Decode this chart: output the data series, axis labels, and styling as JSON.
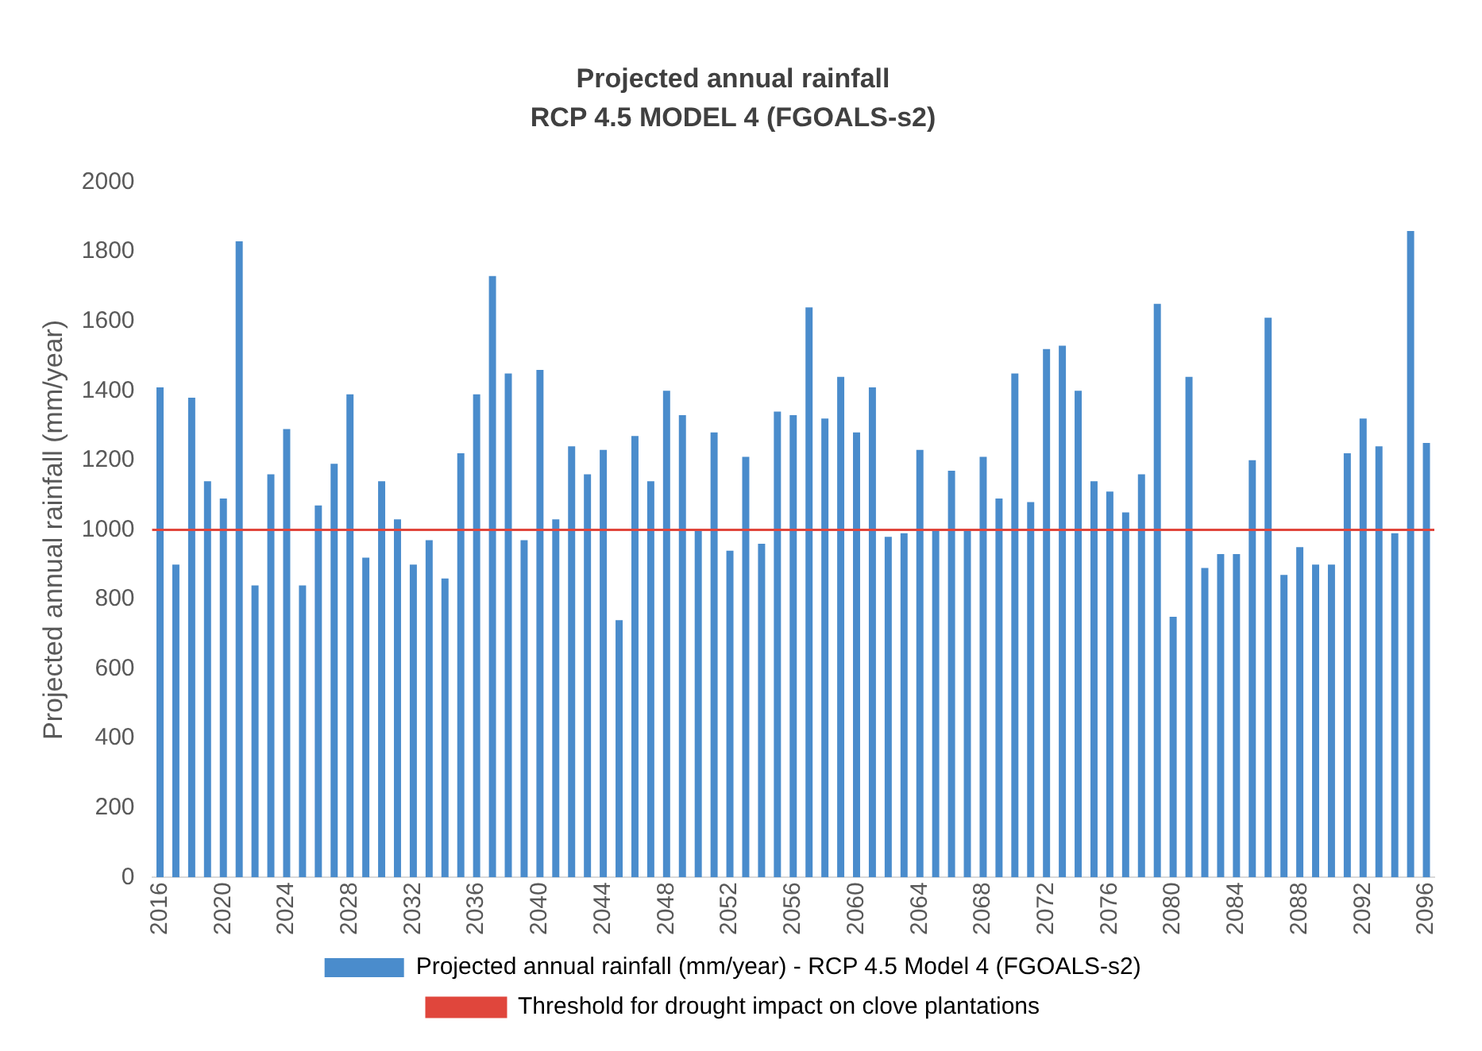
{
  "chart_data": {
    "type": "bar",
    "title": "Projected annual rainfall",
    "subtitle": "RCP 4.5 MODEL 4 (FGOALS-s2)",
    "ylabel": "Projected annual rainfall (mm/year)",
    "categories": [
      "2016",
      null,
      null,
      null,
      "2020",
      null,
      null,
      null,
      "2024",
      null,
      null,
      null,
      "2028",
      null,
      null,
      null,
      "2032",
      null,
      null,
      null,
      "2036",
      null,
      null,
      null,
      "2040",
      null,
      null,
      null,
      "2044",
      null,
      null,
      null,
      "2048",
      null,
      null,
      null,
      "2052",
      null,
      null,
      null,
      "2056",
      null,
      null,
      null,
      "2060",
      null,
      null,
      null,
      "2064",
      null,
      null,
      null,
      "2068",
      null,
      null,
      null,
      "2072",
      null,
      null,
      null,
      "2076",
      null,
      null,
      null,
      "2080",
      null,
      null,
      null,
      "2084",
      null,
      null,
      null,
      "2088",
      null,
      null,
      null,
      "2092",
      null,
      null,
      null,
      "2096"
    ],
    "series": [
      {
        "name": "Projected annual rainfall (mm/year) - RCP 4.5 Model 4 (FGOALS-s2)",
        "color": "#4a8ccc",
        "values": [
          1410,
          900,
          1380,
          1140,
          1090,
          1830,
          840,
          1160,
          1290,
          840,
          1070,
          1190,
          1390,
          920,
          1140,
          1030,
          900,
          970,
          860,
          1220,
          1390,
          1730,
          1450,
          970,
          1460,
          1030,
          1240,
          1160,
          1230,
          740,
          1270,
          1140,
          1400,
          1330,
          1000,
          1280,
          940,
          1210,
          960,
          1340,
          1330,
          1640,
          1320,
          1440,
          1280,
          1410,
          980,
          990,
          1230,
          1000,
          1170,
          1000,
          1210,
          1090,
          1450,
          1080,
          1520,
          1530,
          1400,
          1140,
          1110,
          1050,
          1160,
          1650,
          750,
          1440,
          890,
          930,
          930,
          1200,
          1610,
          870,
          950,
          900,
          900,
          1220,
          1320,
          1240,
          990,
          1860,
          1250
        ]
      }
    ],
    "ref_lines": [
      {
        "axis": "y",
        "value": 1000,
        "label": "Threshold for drought impact on clove plantations",
        "color": "#e0463c"
      }
    ],
    "ylim": [
      0,
      2000
    ],
    "yticks": [
      0,
      200,
      400,
      600,
      800,
      1000,
      1200,
      1400,
      1600,
      1800,
      2000
    ],
    "grid": false,
    "legend": "bottom"
  }
}
